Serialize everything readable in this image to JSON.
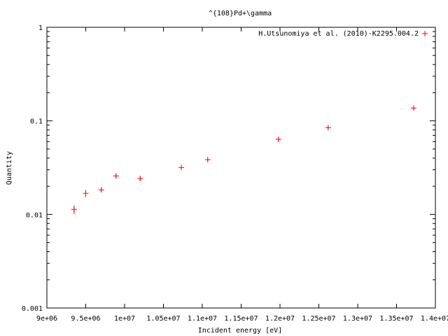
{
  "chart_data": {
    "type": "scatter",
    "title": "^{108}Pd+\\gamma",
    "xlabel": "Incident energy [eV]",
    "ylabel": "Quantity",
    "xlim": [
      9000000,
      14000000
    ],
    "ylim": [
      0.001,
      1
    ],
    "yscale": "log",
    "grid": false,
    "legend_position": "top-right",
    "x_ticks": [
      9000000,
      9500000,
      10000000,
      10500000,
      11000000,
      11500000,
      12000000,
      12500000,
      13000000,
      13500000,
      14000000
    ],
    "x_tick_labels": [
      "9e+06",
      "9.5e+06",
      "1e+07",
      "1.05e+07",
      "1.1e+07",
      "1.15e+07",
      "1.2e+07",
      "1.25e+07",
      "1.3e+07",
      "1.35e+07",
      "1.4e+07"
    ],
    "y_ticks": [
      0.001,
      0.01,
      0.1,
      1
    ],
    "y_tick_labels": [
      "0.001",
      "0.01",
      "0.1",
      "1"
    ],
    "series": [
      {
        "name": "H.Utsunomiya et al. (2010)-K2295.004.2",
        "color": "#ff0000",
        "marker": "plus",
        "x": [
          9350000,
          9500000,
          9700000,
          9890000,
          10200000,
          10730000,
          11070000,
          11980000,
          12620000,
          13720000
        ],
        "y": [
          0.0113,
          0.0168,
          0.0183,
          0.0258,
          0.0242,
          0.0317,
          0.0385,
          0.0635,
          0.0845,
          0.137
        ],
        "y_err": [
          0.0012,
          0.0015,
          0.001,
          0.0012,
          0.001,
          0.0012,
          0.0014,
          0.002,
          0.0025,
          0.004
        ]
      }
    ]
  }
}
